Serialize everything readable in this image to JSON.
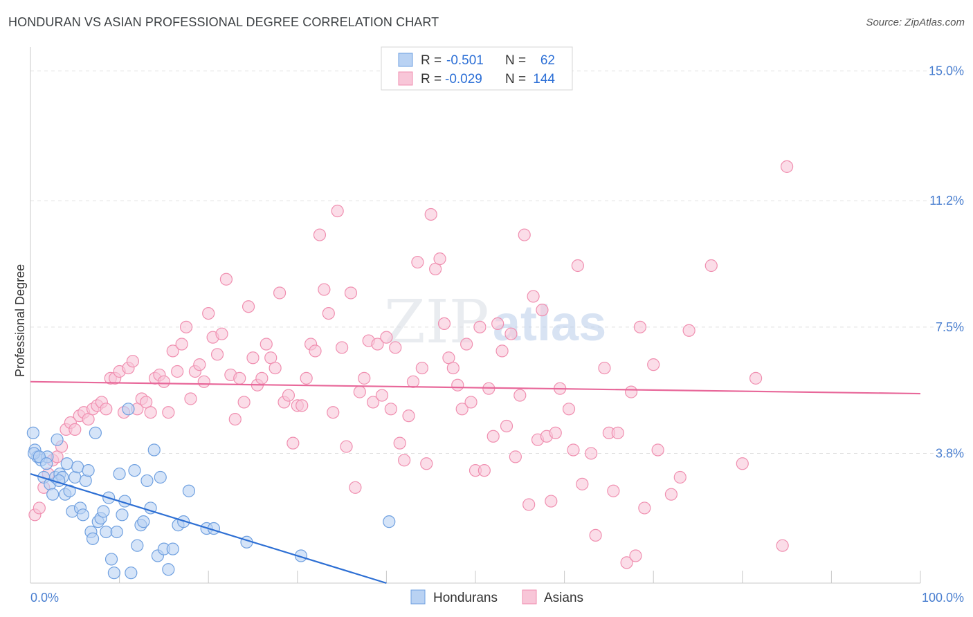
{
  "header": {
    "title": "HONDURAN VS ASIAN PROFESSIONAL DEGREE CORRELATION CHART",
    "source": "Source: ZipAtlas.com"
  },
  "watermark": {
    "part1": "ZIP",
    "part2": "atlas"
  },
  "chart_data": {
    "type": "scatter",
    "title": "HONDURAN VS ASIAN PROFESSIONAL DEGREE CORRELATION CHART",
    "xlabel": "",
    "ylabel": "Professional Degree",
    "xlim": [
      0,
      100
    ],
    "ylim": [
      0,
      15.5
    ],
    "x_tick_labels": {
      "left": "0.0%",
      "right": "100.0%"
    },
    "y_ticks": [
      {
        "value": 3.8,
        "label": "3.8%"
      },
      {
        "value": 7.5,
        "label": "7.5%"
      },
      {
        "value": 11.2,
        "label": "11.2%"
      },
      {
        "value": 15.0,
        "label": "15.0%"
      }
    ],
    "grid": true,
    "legend_position": "top-center",
    "stats": [
      {
        "series": "Hondurans",
        "r_label": "R =",
        "r": "-0.501",
        "n_label": "N =",
        "n": "62"
      },
      {
        "series": "Asians",
        "r_label": "R =",
        "r": "-0.029",
        "n_label": "N =",
        "n": "144"
      }
    ],
    "series": [
      {
        "name": "Hondurans",
        "color": "#6fa0e0",
        "fill": "#b9d2f3",
        "trend": {
          "x": [
            0,
            40
          ],
          "y": [
            3.2,
            0.0
          ],
          "color": "#2d6fd4"
        },
        "points": [
          [
            0.3,
            4.4
          ],
          [
            0.5,
            3.9
          ],
          [
            0.8,
            3.7
          ],
          [
            1.2,
            3.6
          ],
          [
            1.5,
            3.1
          ],
          [
            1.9,
            3.7
          ],
          [
            2.2,
            2.9
          ],
          [
            2.5,
            2.6
          ],
          [
            2.8,
            3.1
          ],
          [
            3.0,
            4.2
          ],
          [
            3.3,
            3.2
          ],
          [
            3.6,
            3.1
          ],
          [
            3.9,
            2.6
          ],
          [
            4.1,
            3.5
          ],
          [
            4.4,
            2.7
          ],
          [
            4.7,
            2.1
          ],
          [
            5.0,
            3.1
          ],
          [
            5.3,
            3.4
          ],
          [
            5.6,
            2.2
          ],
          [
            5.9,
            2.0
          ],
          [
            6.2,
            3.0
          ],
          [
            6.5,
            3.3
          ],
          [
            6.8,
            1.5
          ],
          [
            7.0,
            1.3
          ],
          [
            7.3,
            4.4
          ],
          [
            7.6,
            1.8
          ],
          [
            7.9,
            1.9
          ],
          [
            8.2,
            2.1
          ],
          [
            8.5,
            1.5
          ],
          [
            8.8,
            2.5
          ],
          [
            9.1,
            0.7
          ],
          [
            9.4,
            0.3
          ],
          [
            9.7,
            1.5
          ],
          [
            10.0,
            3.2
          ],
          [
            10.3,
            2.0
          ],
          [
            10.6,
            2.4
          ],
          [
            11.0,
            5.1
          ],
          [
            11.3,
            0.3
          ],
          [
            11.7,
            3.3
          ],
          [
            12.0,
            1.1
          ],
          [
            12.4,
            1.7
          ],
          [
            12.7,
            1.8
          ],
          [
            13.1,
            3.0
          ],
          [
            13.5,
            2.2
          ],
          [
            13.9,
            3.9
          ],
          [
            14.3,
            0.8
          ],
          [
            14.6,
            3.1
          ],
          [
            15.0,
            1.0
          ],
          [
            15.5,
            0.4
          ],
          [
            16.0,
            1.0
          ],
          [
            16.6,
            1.7
          ],
          [
            17.2,
            1.8
          ],
          [
            17.8,
            2.7
          ],
          [
            19.8,
            1.6
          ],
          [
            20.6,
            1.6
          ],
          [
            24.3,
            1.2
          ],
          [
            30.4,
            0.8
          ],
          [
            40.3,
            1.8
          ],
          [
            0.4,
            3.8
          ],
          [
            1.0,
            3.7
          ],
          [
            1.8,
            3.5
          ],
          [
            3.2,
            3.0
          ]
        ]
      },
      {
        "name": "Asians",
        "color": "#f08fb0",
        "fill": "#f8c6d8",
        "trend": {
          "x": [
            0,
            100
          ],
          "y": [
            5.9,
            5.55
          ],
          "color": "#e8689a"
        },
        "points": [
          [
            0.5,
            2.0
          ],
          [
            1.0,
            2.2
          ],
          [
            1.5,
            2.8
          ],
          [
            2.0,
            3.2
          ],
          [
            2.5,
            3.6
          ],
          [
            3.0,
            3.7
          ],
          [
            3.5,
            4.0
          ],
          [
            4.0,
            4.5
          ],
          [
            4.5,
            4.7
          ],
          [
            5.0,
            4.5
          ],
          [
            5.5,
            4.9
          ],
          [
            6.0,
            5.0
          ],
          [
            6.5,
            4.8
          ],
          [
            7.0,
            5.1
          ],
          [
            7.5,
            5.2
          ],
          [
            8.0,
            5.3
          ],
          [
            8.5,
            5.1
          ],
          [
            9.0,
            6.0
          ],
          [
            9.5,
            6.0
          ],
          [
            10.0,
            6.2
          ],
          [
            10.5,
            5.0
          ],
          [
            11.0,
            6.3
          ],
          [
            11.5,
            6.5
          ],
          [
            12.0,
            5.1
          ],
          [
            12.5,
            5.4
          ],
          [
            13.0,
            5.3
          ],
          [
            13.5,
            5.0
          ],
          [
            14.0,
            6.0
          ],
          [
            14.5,
            6.1
          ],
          [
            15.0,
            5.9
          ],
          [
            15.5,
            5.0
          ],
          [
            16.0,
            6.8
          ],
          [
            16.5,
            6.2
          ],
          [
            17.0,
            7.0
          ],
          [
            17.5,
            7.5
          ],
          [
            18.0,
            5.4
          ],
          [
            18.5,
            6.2
          ],
          [
            19.0,
            6.4
          ],
          [
            19.5,
            5.9
          ],
          [
            20.0,
            7.9
          ],
          [
            20.5,
            7.2
          ],
          [
            21.0,
            6.7
          ],
          [
            21.5,
            7.3
          ],
          [
            22.0,
            8.9
          ],
          [
            22.5,
            6.1
          ],
          [
            23.0,
            4.8
          ],
          [
            23.5,
            6.0
          ],
          [
            24.0,
            5.3
          ],
          [
            24.5,
            8.1
          ],
          [
            25.0,
            6.6
          ],
          [
            25.5,
            5.8
          ],
          [
            26.0,
            6.0
          ],
          [
            26.5,
            7.0
          ],
          [
            27.0,
            6.6
          ],
          [
            27.5,
            6.3
          ],
          [
            28.0,
            8.5
          ],
          [
            28.5,
            5.3
          ],
          [
            29.0,
            5.5
          ],
          [
            29.5,
            4.1
          ],
          [
            30.0,
            5.2
          ],
          [
            30.5,
            5.2
          ],
          [
            31.0,
            6.0
          ],
          [
            31.5,
            7.0
          ],
          [
            32.0,
            6.8
          ],
          [
            32.5,
            10.2
          ],
          [
            33.0,
            8.6
          ],
          [
            33.5,
            7.9
          ],
          [
            34.0,
            5.0
          ],
          [
            34.5,
            10.9
          ],
          [
            35.0,
            6.9
          ],
          [
            35.5,
            4.0
          ],
          [
            36.0,
            8.5
          ],
          [
            36.5,
            2.8
          ],
          [
            37.0,
            5.6
          ],
          [
            37.5,
            6.0
          ],
          [
            38.0,
            7.1
          ],
          [
            38.5,
            5.3
          ],
          [
            39.0,
            7.0
          ],
          [
            39.5,
            5.5
          ],
          [
            40.0,
            7.2
          ],
          [
            40.5,
            5.1
          ],
          [
            41.0,
            6.9
          ],
          [
            41.5,
            4.1
          ],
          [
            42.0,
            3.6
          ],
          [
            42.5,
            4.9
          ],
          [
            43.0,
            5.9
          ],
          [
            43.5,
            9.4
          ],
          [
            44.0,
            6.3
          ],
          [
            44.5,
            3.5
          ],
          [
            45.0,
            10.8
          ],
          [
            45.5,
            9.2
          ],
          [
            46.0,
            9.5
          ],
          [
            46.5,
            7.6
          ],
          [
            47.0,
            6.6
          ],
          [
            47.5,
            6.3
          ],
          [
            48.0,
            5.8
          ],
          [
            48.5,
            5.1
          ],
          [
            49.0,
            7.0
          ],
          [
            49.5,
            5.3
          ],
          [
            50.0,
            3.3
          ],
          [
            50.5,
            7.5
          ],
          [
            51.0,
            3.3
          ],
          [
            51.5,
            5.7
          ],
          [
            52.0,
            4.3
          ],
          [
            52.5,
            7.6
          ],
          [
            53.0,
            6.8
          ],
          [
            53.5,
            4.6
          ],
          [
            54.0,
            7.3
          ],
          [
            54.5,
            3.7
          ],
          [
            55.0,
            5.5
          ],
          [
            55.5,
            10.2
          ],
          [
            56.0,
            2.3
          ],
          [
            56.5,
            8.4
          ],
          [
            57.0,
            4.2
          ],
          [
            57.5,
            8.0
          ],
          [
            58.0,
            4.3
          ],
          [
            58.5,
            2.4
          ],
          [
            59.0,
            4.4
          ],
          [
            59.5,
            5.7
          ],
          [
            60.5,
            5.1
          ],
          [
            61.0,
            3.9
          ],
          [
            61.5,
            9.3
          ],
          [
            62.0,
            2.9
          ],
          [
            63.0,
            3.8
          ],
          [
            63.5,
            1.4
          ],
          [
            64.5,
            6.3
          ],
          [
            65.0,
            4.4
          ],
          [
            65.5,
            2.7
          ],
          [
            66.0,
            4.4
          ],
          [
            67.0,
            0.6
          ],
          [
            67.5,
            5.6
          ],
          [
            68.0,
            0.8
          ],
          [
            68.5,
            7.5
          ],
          [
            69.0,
            2.2
          ],
          [
            70.0,
            6.4
          ],
          [
            70.5,
            3.9
          ],
          [
            72.0,
            2.6
          ],
          [
            73.0,
            3.1
          ],
          [
            74.0,
            7.4
          ],
          [
            76.5,
            9.3
          ],
          [
            80.0,
            3.5
          ],
          [
            81.5,
            6.0
          ],
          [
            84.5,
            1.1
          ],
          [
            85.0,
            12.2
          ]
        ]
      }
    ]
  }
}
